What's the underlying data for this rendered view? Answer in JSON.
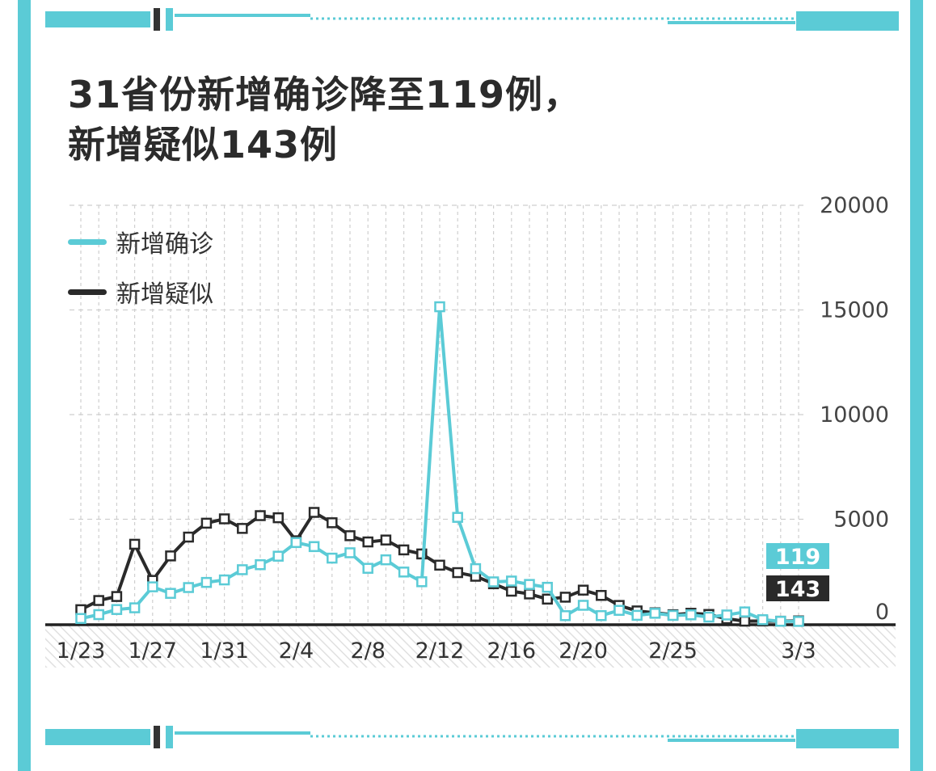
{
  "title_lines": [
    "31省份新增确诊降至119例，",
    "新增疑似143例"
  ],
  "colors": {
    "frame": "#5bcbd6",
    "confirmed": "#5bcbd6",
    "suspected": "#2a2a2a",
    "text": "#2b2b2b",
    "grid": "#cfcfcf"
  },
  "chart_data": {
    "type": "line",
    "title": "31省份新增确诊降至119例，新增疑似143例",
    "xlabel": "",
    "ylabel": "",
    "ylim": [
      0,
      20000
    ],
    "y_ticks": [
      0,
      5000,
      10000,
      15000,
      20000
    ],
    "y_tick_labels": [
      "0",
      "5000",
      "10000",
      "15000",
      "20000"
    ],
    "grid": true,
    "legend": "top-left",
    "x": [
      "1/23",
      "1/24",
      "1/25",
      "1/26",
      "1/27",
      "1/28",
      "1/29",
      "1/30",
      "1/31",
      "2/1",
      "2/2",
      "2/3",
      "2/4",
      "2/5",
      "2/6",
      "2/7",
      "2/8",
      "2/9",
      "2/10",
      "2/11",
      "2/12",
      "2/13",
      "2/14",
      "2/15",
      "2/16",
      "2/17",
      "2/18",
      "2/19",
      "2/20",
      "2/21",
      "2/22",
      "2/23",
      "2/24",
      "2/25",
      "2/26",
      "2/27",
      "2/28",
      "2/29",
      "3/1",
      "3/2",
      "3/3"
    ],
    "x_tick_labels": [
      {
        "index": 0,
        "label": "1/23"
      },
      {
        "index": 4,
        "label": "1/27"
      },
      {
        "index": 8,
        "label": "1/31"
      },
      {
        "index": 12,
        "label": "2/4"
      },
      {
        "index": 16,
        "label": "2/8"
      },
      {
        "index": 20,
        "label": "2/12"
      },
      {
        "index": 24,
        "label": "2/16"
      },
      {
        "index": 28,
        "label": "2/20"
      },
      {
        "index": 33,
        "label": "2/25"
      },
      {
        "index": 40,
        "label": "3/3"
      }
    ],
    "series": [
      {
        "name": "新增确诊",
        "color": "#5bcbd6",
        "values": [
          259,
          444,
          688,
          769,
          1771,
          1459,
          1737,
          1982,
          2102,
          2590,
          2829,
          3235,
          3887,
          3694,
          3143,
          3399,
          2656,
          3062,
          2478,
          2015,
          15152,
          5090,
          2641,
          2009,
          2048,
          1886,
          1749,
          394,
          889,
          397,
          648,
          409,
          508,
          406,
          433,
          327,
          427,
          573,
          202,
          125,
          119
        ]
      },
      {
        "name": "新增疑似",
        "color": "#2a2a2a",
        "values": [
          680,
          1118,
          1309,
          3806,
          2077,
          3248,
          4148,
          4812,
          5019,
          4562,
          5173,
          5072,
          3971,
          5328,
          4833,
          4214,
          3916,
          4008,
          3536,
          3342,
          2807,
          2450,
          2277,
          1918,
          1563,
          1432,
          1185,
          1277,
          1614,
          1361,
          882,
          620,
          530,
          439,
          508,
          452,
          248,
          132,
          141,
          129,
          143
        ]
      }
    ],
    "end_labels": [
      {
        "series": "新增确诊",
        "value": "119"
      },
      {
        "series": "新增疑似",
        "value": "143"
      }
    ]
  }
}
